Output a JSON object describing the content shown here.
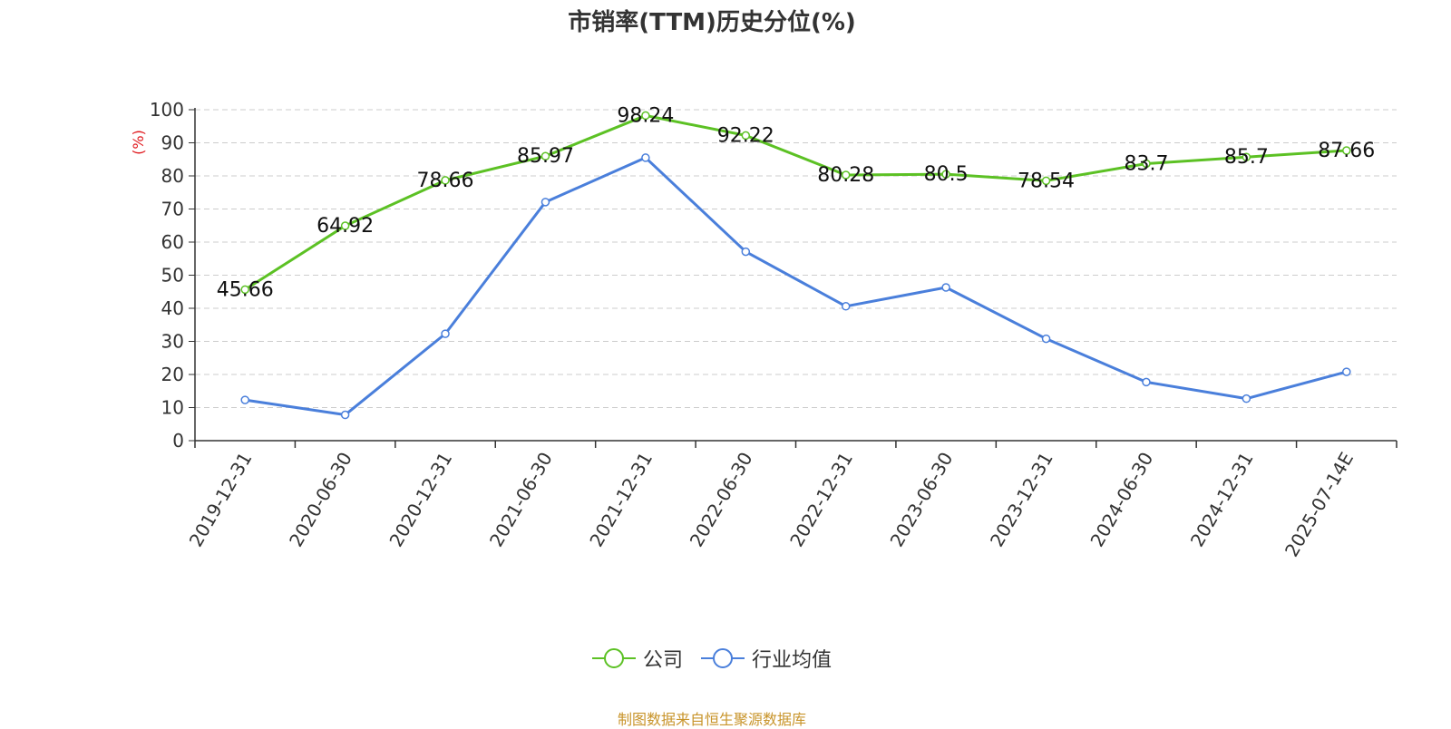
{
  "chart_data": {
    "type": "line",
    "title": "市销率(TTM)历史分位(%)",
    "ylabel": "(%)",
    "xlabel": "",
    "ylim": [
      0,
      100
    ],
    "yticks": [
      0,
      10,
      20,
      30,
      40,
      50,
      60,
      70,
      80,
      90,
      100
    ],
    "grid": true,
    "legend_position": "bottom",
    "categories": [
      "2019-12-31",
      "2020-06-30",
      "2020-12-31",
      "2021-06-30",
      "2021-12-31",
      "2022-06-30",
      "2022-12-31",
      "2023-06-30",
      "2023-12-31",
      "2024-06-30",
      "2024-12-31",
      "2025-07-14E"
    ],
    "series": [
      {
        "name": "公司",
        "color": "#5cc124",
        "show_labels": true,
        "values": [
          45.66,
          64.92,
          78.66,
          85.97,
          98.24,
          92.22,
          80.28,
          80.5,
          78.54,
          83.7,
          85.7,
          87.66
        ]
      },
      {
        "name": "行业均值",
        "color": "#4a7fdb",
        "show_labels": false,
        "values": [
          12.3,
          7.8,
          32.3,
          72.1,
          85.5,
          57.1,
          40.6,
          46.3,
          30.8,
          17.7,
          12.7,
          20.8
        ]
      }
    ]
  },
  "source_note": "制图数据来自恒生聚源数据库"
}
